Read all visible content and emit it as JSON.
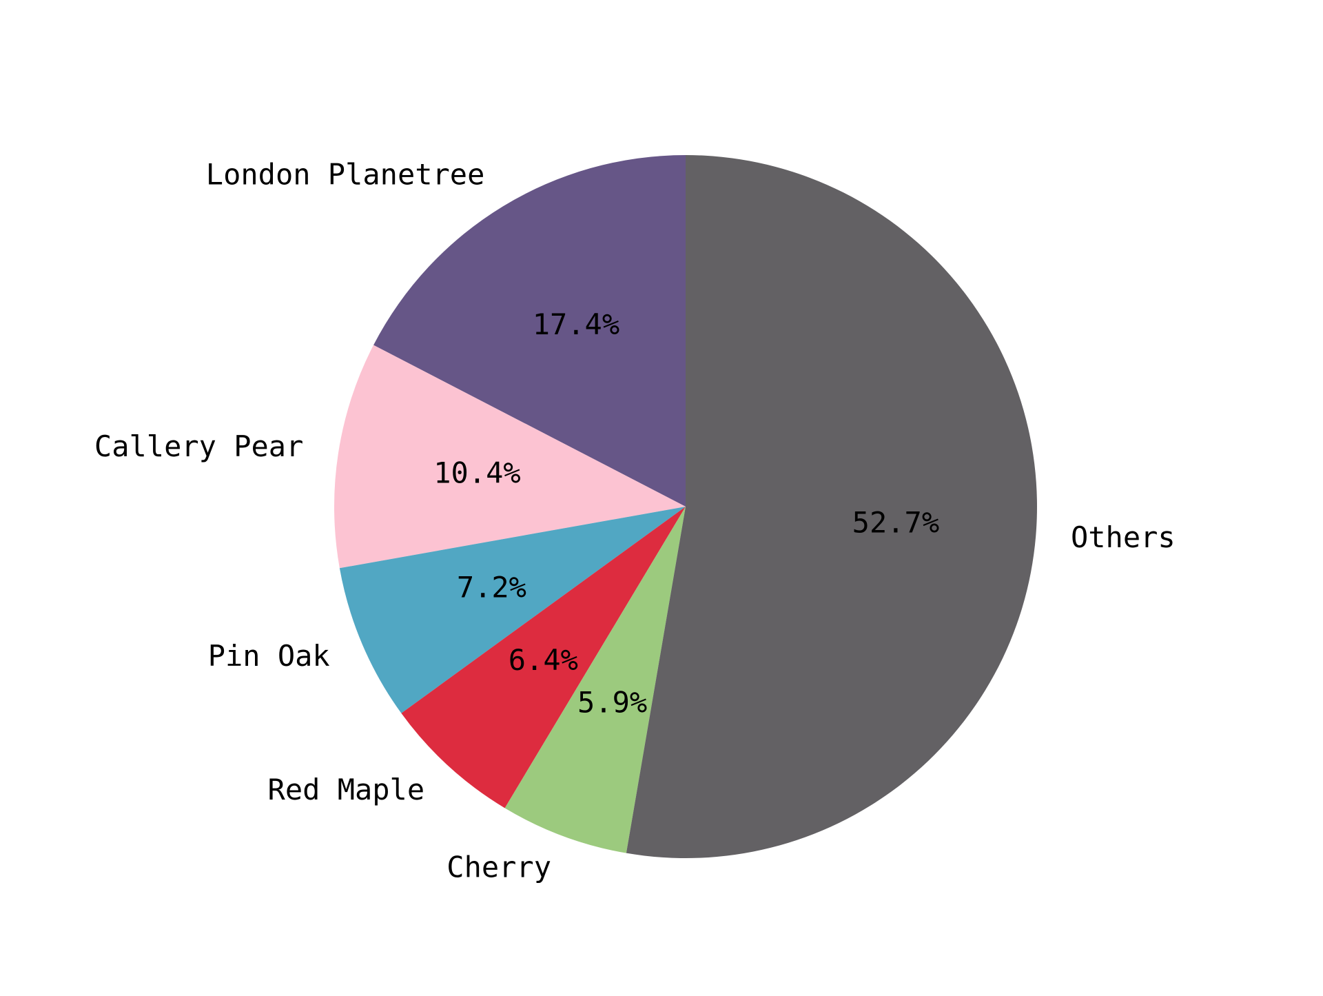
{
  "chart_data": {
    "type": "pie",
    "categories": [
      "London Planetree",
      "Callery Pear",
      "Pin Oak",
      "Red Maple",
      "Cherry",
      "Others"
    ],
    "values": [
      17.4,
      10.4,
      7.2,
      6.4,
      5.9,
      52.7
    ],
    "pct_labels": [
      "17.4%",
      "10.4%",
      "7.2%",
      "6.4%",
      "5.9%",
      "52.7%"
    ],
    "colors": [
      "#665687",
      "#fcc3d2",
      "#51a7c3",
      "#dd2c3f",
      "#9cca7e",
      "#636164"
    ],
    "start_angle_deg": 90,
    "direction": "counterclockwise",
    "legend": "none"
  }
}
